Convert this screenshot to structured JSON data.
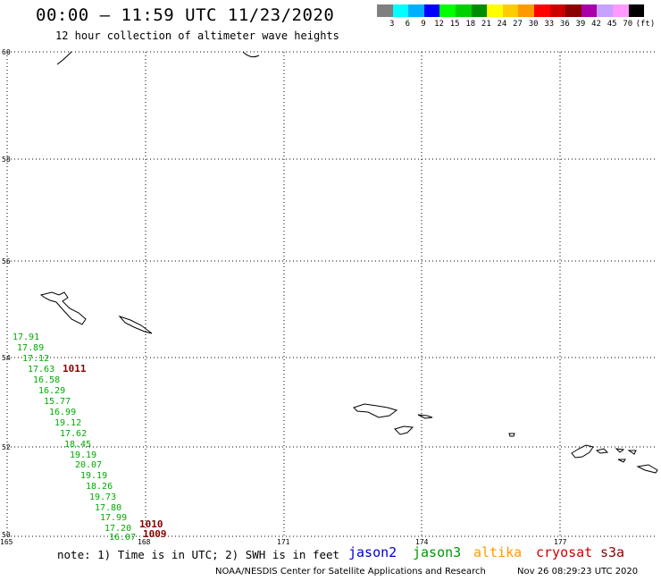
{
  "header": {
    "title": "00:00 – 11:59 UTC 11/23/2020",
    "subtitle": "12 hour collection of altimeter wave heights"
  },
  "legend": {
    "colors": [
      "#808080",
      "#00ffff",
      "#00b0ff",
      "#0000ff",
      "#00ff00",
      "#00d000",
      "#008c00",
      "#ffff00",
      "#ffcc00",
      "#ff9900",
      "#ff0000",
      "#cc0000",
      "#8b0000",
      "#aa00aa",
      "#c8a0ff",
      "#ff99ff",
      "#000000"
    ],
    "labels": [
      "3",
      "6",
      "9",
      "12",
      "15",
      "18",
      "21",
      "24",
      "27",
      "30",
      "33",
      "36",
      "39",
      "42",
      "45",
      "70",
      "(ft)"
    ]
  },
  "axes": {
    "lat_ticks": [
      "60",
      "58",
      "56",
      "54",
      "52",
      "50"
    ],
    "lon_ticks": [
      "165",
      "168",
      "171",
      "174",
      "177"
    ]
  },
  "observations": {
    "jason3": [
      "17.91",
      "17.89",
      "17.12",
      "17.63",
      "16.58",
      "16.29",
      "15.77",
      "16.99",
      "19.12",
      "17.62",
      "18.45",
      "19.19",
      "20.07",
      "19.19",
      "18.26",
      "19.73",
      "17.80",
      "17.99",
      "17.20",
      "16.07"
    ],
    "pressure": [
      "1011",
      "1010",
      "1009"
    ]
  },
  "footer": {
    "note": "note: 1) Time is in UTC; 2) SWH is in feet",
    "satellites": [
      {
        "name": "jason2",
        "color": "#0000cc"
      },
      {
        "name": "jason3",
        "color": "#009900"
      },
      {
        "name": "altika",
        "color": "#ff9900"
      },
      {
        "name": "cryosat",
        "color": "#cc0000"
      },
      {
        "name": "s3a",
        "color": "#8b0000"
      }
    ],
    "credit": "NOAA/NESDIS Center for Satellite Applications and Research",
    "timestamp": "Nov 26 08:29:23 UTC 2020"
  }
}
